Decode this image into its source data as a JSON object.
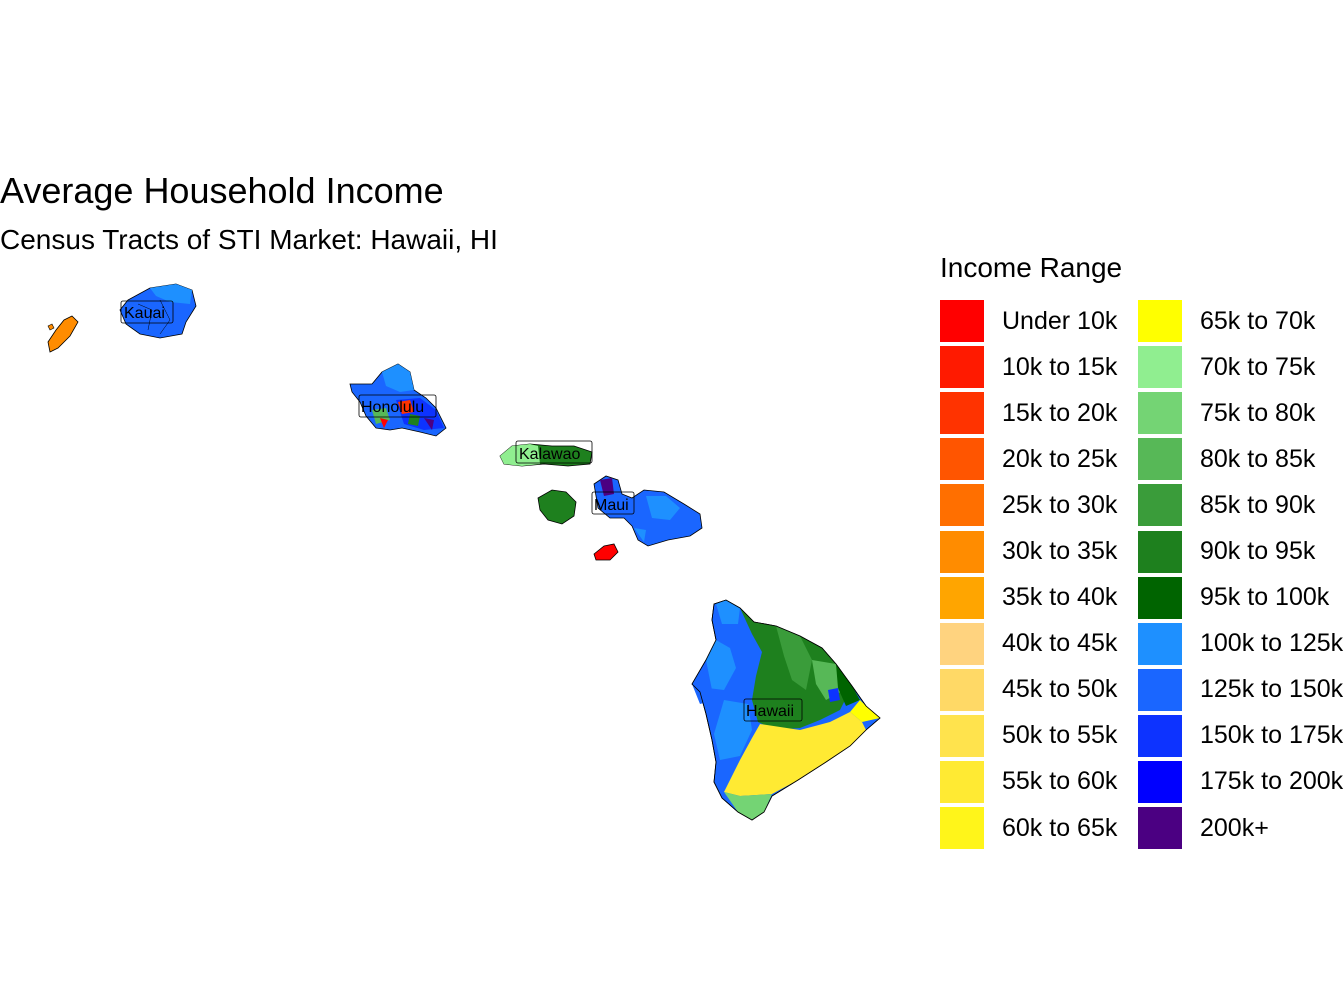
{
  "title": "Average Household Income",
  "subtitle": "Census Tracts of STI Market: Hawaii, HI",
  "legend": {
    "title": "Income Range",
    "columns": [
      [
        {
          "label": "Under 10k",
          "color": "#ff0000"
        },
        {
          "label": "10k to 15k",
          "color": "#ff1a00"
        },
        {
          "label": "15k to 20k",
          "color": "#ff3300"
        },
        {
          "label": "20k to 25k",
          "color": "#ff5500"
        },
        {
          "label": "25k to 30k",
          "color": "#ff6f00"
        },
        {
          "label": "30k to 35k",
          "color": "#ff8c00"
        },
        {
          "label": "35k to 40k",
          "color": "#ffa500"
        },
        {
          "label": "40k to 45k",
          "color": "#ffd37f"
        },
        {
          "label": "45k to 50k",
          "color": "#ffd966"
        },
        {
          "label": "50k to 55k",
          "color": "#ffe34d"
        },
        {
          "label": "55k to 60k",
          "color": "#ffea33"
        },
        {
          "label": "60k to 65k",
          "color": "#fff51a"
        }
      ],
      [
        {
          "label": "65k to 70k",
          "color": "#ffff00"
        },
        {
          "label": "70k to 75k",
          "color": "#90ee90"
        },
        {
          "label": "75k to 80k",
          "color": "#74d474"
        },
        {
          "label": "80k to 85k",
          "color": "#57b857"
        },
        {
          "label": "85k to 90k",
          "color": "#3a9c3a"
        },
        {
          "label": "90k to 95k",
          "color": "#1e801e"
        },
        {
          "label": "95k to 100k",
          "color": "#006400"
        },
        {
          "label": "100k to 125k",
          "color": "#1e90ff"
        },
        {
          "label": "125k to 150k",
          "color": "#1a66ff"
        },
        {
          "label": "150k to 175k",
          "color": "#0d33ff"
        },
        {
          "label": "175k to 200k",
          "color": "#0000ff"
        },
        {
          "label": "200k+",
          "color": "#4b0082"
        }
      ]
    ]
  },
  "places": {
    "kauai": "Kauai",
    "honolulu": "Honolulu",
    "kalawao": "Kalawao",
    "maui": "Maui",
    "hawaii": "Hawaii"
  }
}
